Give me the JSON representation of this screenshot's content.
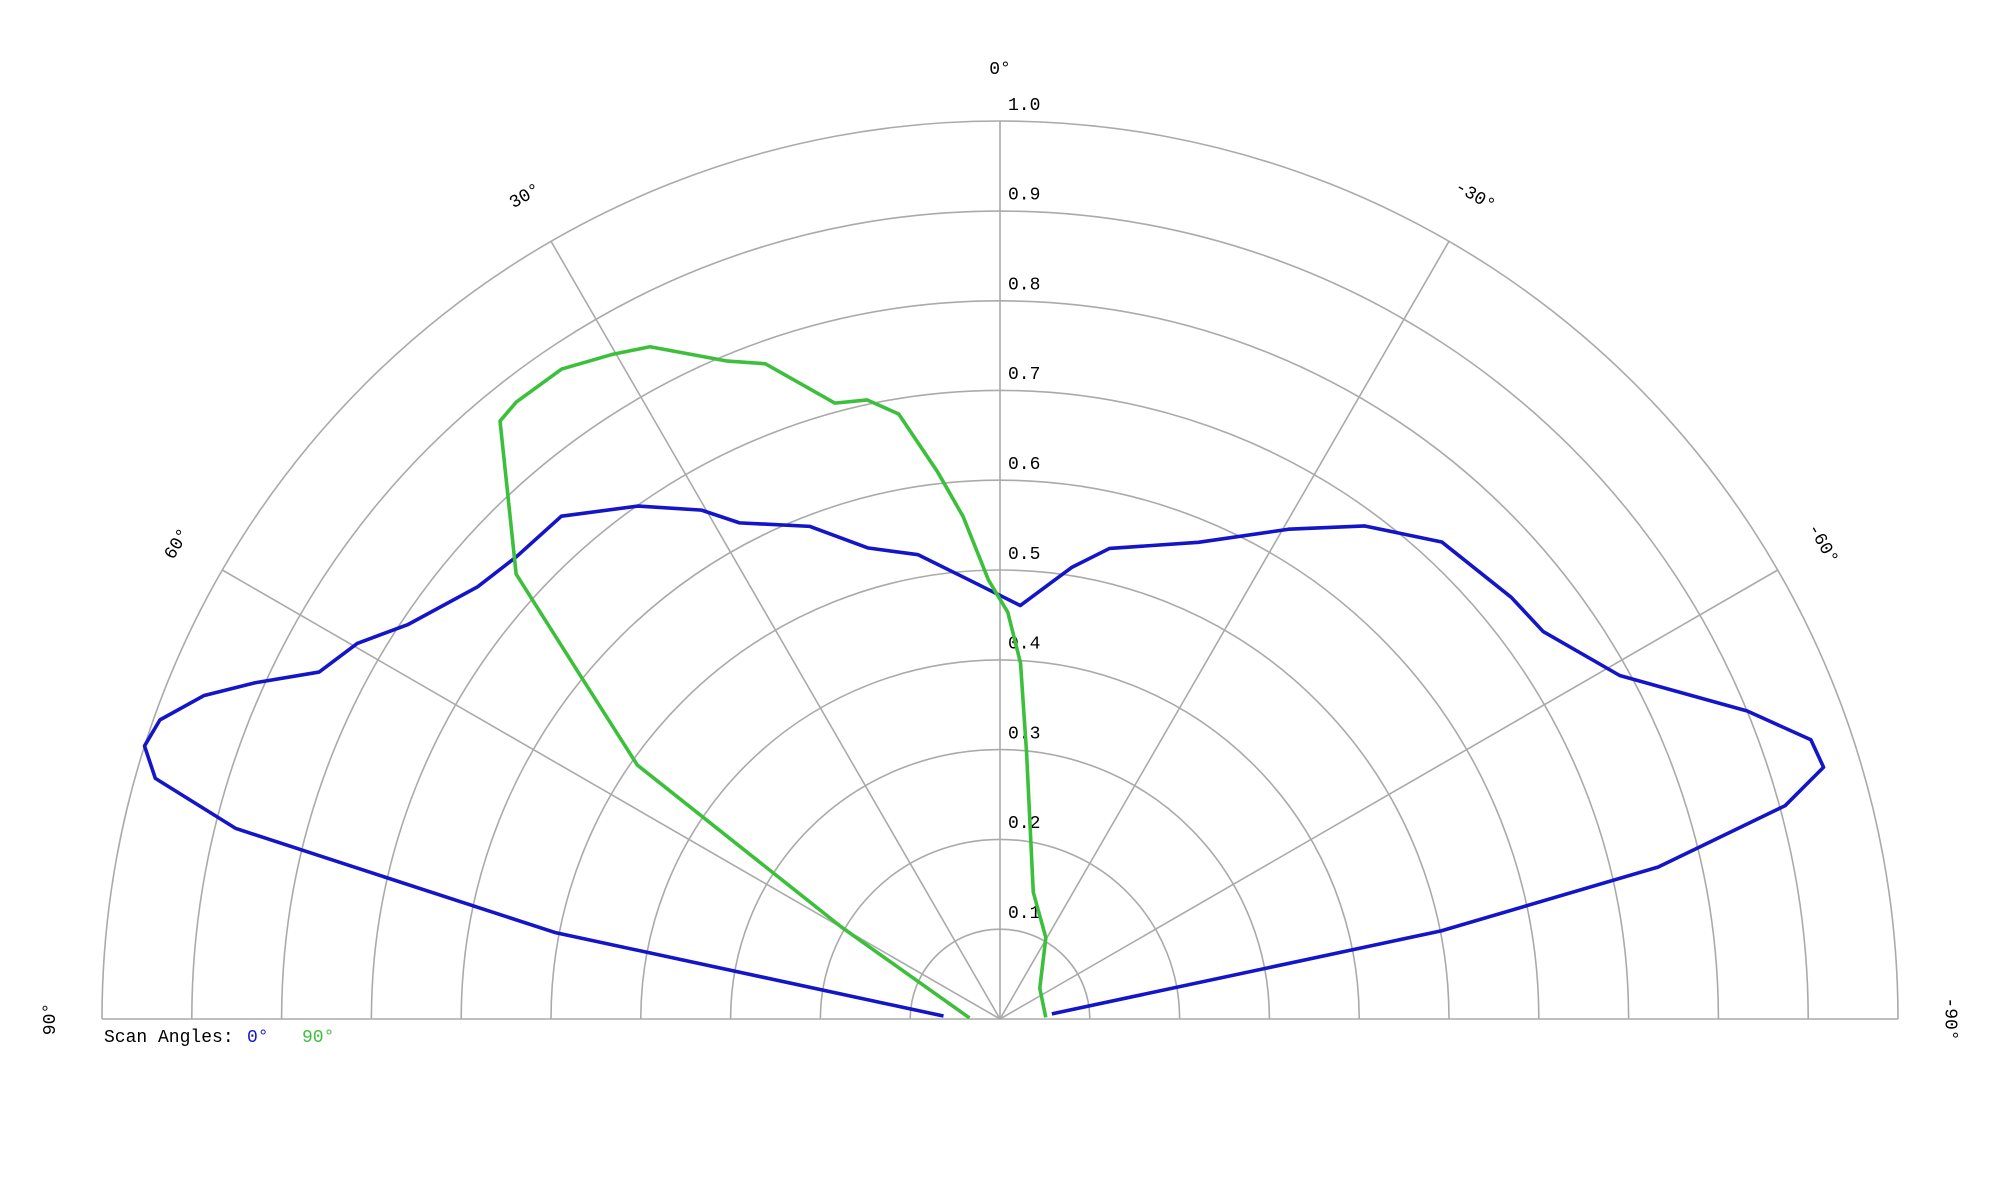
{
  "chart_data": {
    "type": "polar",
    "thetalim": [
      -90,
      90
    ],
    "rlim": [
      0,
      1
    ],
    "rticks": [
      0.1,
      0.2,
      0.3,
      0.4,
      0.5,
      0.6,
      0.7,
      0.8,
      0.9,
      {
        "value": 1,
        "label": "1.0"
      }
    ],
    "thetaticks": [
      {
        "value": 90,
        "label": "90°"
      },
      {
        "value": 60,
        "label": "60°"
      },
      {
        "value": 30,
        "label": "30°"
      },
      {
        "value": 0,
        "label": "0°"
      },
      {
        "value": -30,
        "label": "-30°"
      },
      {
        "value": -60,
        "label": "-60°"
      },
      {
        "value": -90,
        "label": "-90°"
      }
    ],
    "grid": true,
    "legend_title": "Scan Angles:",
    "series": [
      {
        "name": "0°",
        "color": "#1414c8",
        "theta": [
          87,
          79,
          76,
          74.1,
          72.3,
          70.4,
          67.9,
          65.7,
          63,
          59.7,
          56.3,
          50.4,
          46.3,
          41.1,
          35.2,
          30.4,
          27.7,
          21.1,
          15.7,
          10,
          4,
          -2.8,
          -9,
          -13.1,
          -22.6,
          -30.5,
          -36.5,
          -42.8,
          -50.5,
          -54.5,
          -61,
          -67.6,
          -71,
          -73,
          -74.8,
          -77,
          -78.7,
          -84.4
        ],
        "values": [
          0.063,
          0.505,
          0.877,
          0.978,
          1.0,
          0.993,
          0.957,
          0.91,
          0.851,
          0.829,
          0.792,
          0.755,
          0.745,
          0.743,
          0.699,
          0.657,
          0.624,
          0.588,
          0.545,
          0.525,
          0.49,
          0.461,
          0.509,
          0.538,
          0.575,
          0.633,
          0.683,
          0.724,
          0.738,
          0.743,
          0.789,
          0.9,
          0.955,
          0.959,
          0.906,
          0.752,
          0.501,
          0.058
        ]
      },
      {
        "name": "90°",
        "color": "#3cc03c",
        "theta": [
          88,
          59.9,
          55,
          50.7,
          47.4,
          42.7,
          39.9,
          38.1,
          34,
          30.3,
          27.5,
          22.5,
          19.7,
          15,
          12.1,
          9.5,
          6.5,
          4.2,
          1.5,
          -1.1,
          -3.3,
          -5.7,
          -14.7,
          -29.4,
          -52.3,
          -88
        ],
        "values": [
          0.034,
          0.204,
          0.493,
          0.604,
          0.732,
          0.81,
          0.868,
          0.873,
          0.873,
          0.857,
          0.844,
          0.793,
          0.775,
          0.71,
          0.705,
          0.683,
          0.613,
          0.561,
          0.489,
          0.453,
          0.397,
          0.298,
          0.146,
          0.104,
          0.056,
          0.051
        ]
      }
    ]
  }
}
